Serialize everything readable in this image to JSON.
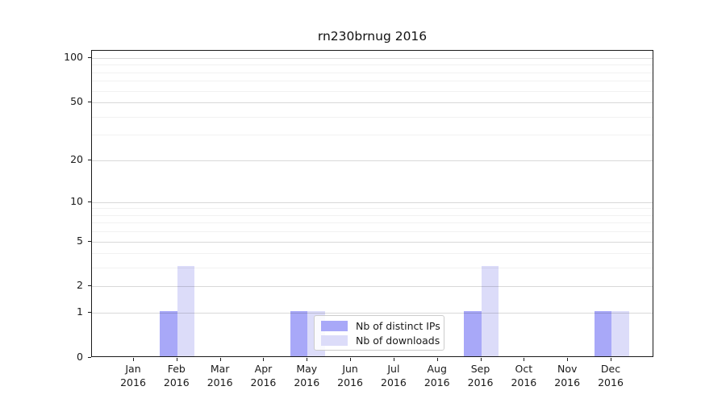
{
  "title": "rn230brnug 2016",
  "chart_data": {
    "type": "bar",
    "title": "rn230brnug 2016",
    "categories": [
      "Jan",
      "Feb",
      "Mar",
      "Apr",
      "May",
      "Jun",
      "Jul",
      "Aug",
      "Sep",
      "Oct",
      "Nov",
      "Dec"
    ],
    "year_label": "2016",
    "series": [
      {
        "name": "Nb of distinct IPs",
        "color": "#a8a8f8",
        "values": [
          0,
          1,
          0,
          0,
          1,
          0,
          0,
          0,
          1,
          0,
          0,
          1
        ]
      },
      {
        "name": "Nb of downloads",
        "color": "#dcdcf9",
        "values": [
          0,
          3,
          0,
          0,
          1,
          0,
          0,
          0,
          3,
          0,
          0,
          1
        ]
      }
    ],
    "yscale": "log1p",
    "ylim": [
      0,
      112
    ],
    "y_major_ticks": [
      0,
      1,
      2,
      5,
      10,
      20,
      50,
      100
    ],
    "y_minor_ticks": [
      3,
      4,
      6,
      7,
      8,
      9,
      30,
      40,
      60,
      70,
      80,
      90
    ],
    "grid": "horizontal",
    "legend_position": "lower center"
  },
  "legend": {
    "items": [
      {
        "label": "Nb of distinct IPs",
        "color": "#a8a8f8"
      },
      {
        "label": "Nb of downloads",
        "color": "#dcdcf9"
      }
    ]
  },
  "colors": {
    "background": "#ffffff",
    "axis": "#1a1a1a",
    "grid_major": "#d9d9d9",
    "grid_minor": "#f1f1f1",
    "bar_distinct_ips": "#a8a8f8",
    "bar_downloads": "#dcdcf9"
  }
}
